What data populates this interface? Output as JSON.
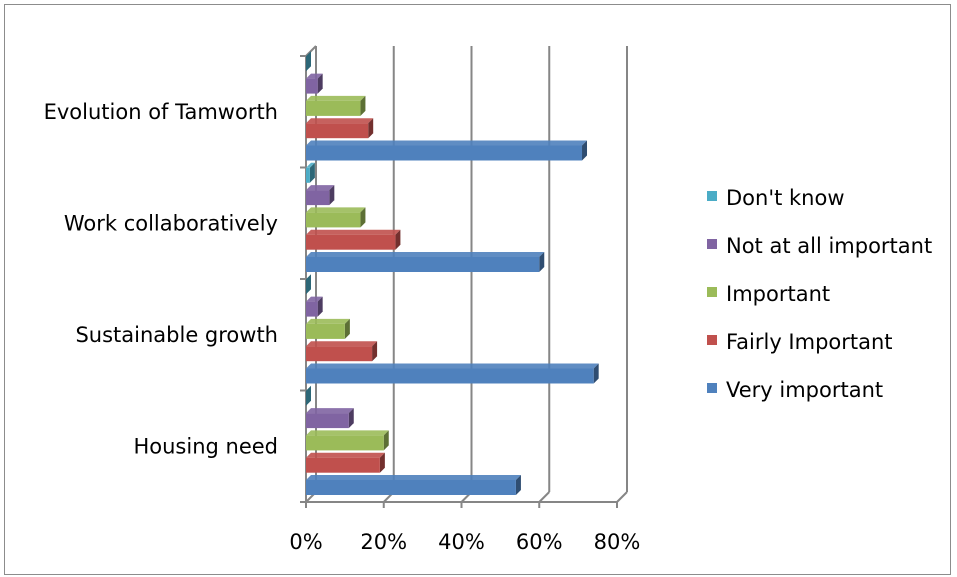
{
  "chart_data": {
    "type": "bar",
    "orientation": "horizontal",
    "three_d": true,
    "categories": [
      "Housing need",
      "Sustainable growth",
      "Work collaboratively",
      "Evolution of Tamworth"
    ],
    "series": [
      {
        "name": "Very important",
        "color": "#4f81bd",
        "values": [
          0.54,
          0.74,
          0.6,
          0.71
        ]
      },
      {
        "name": "Fairly Important",
        "color": "#c0504d",
        "values": [
          0.19,
          0.17,
          0.23,
          0.16
        ]
      },
      {
        "name": "Important",
        "color": "#9bbb59",
        "values": [
          0.2,
          0.1,
          0.14,
          0.14
        ]
      },
      {
        "name": "Not at all important",
        "color": "#8064a2",
        "values": [
          0.11,
          0.03,
          0.06,
          0.03
        ]
      },
      {
        "name": "Don't know",
        "color": "#4bacc6",
        "values": [
          0.0,
          0.0,
          0.01,
          0.0
        ]
      }
    ],
    "xlim": [
      0,
      0.8
    ],
    "xticks": [
      "0%",
      "20%",
      "40%",
      "60%",
      "80%"
    ],
    "grid": true,
    "legend_position": "right",
    "title": "",
    "xlabel": "",
    "ylabel": ""
  }
}
